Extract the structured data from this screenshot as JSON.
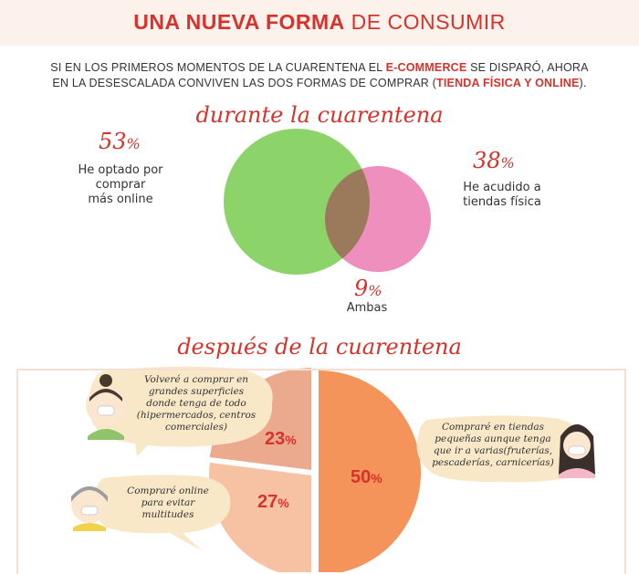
{
  "header": {
    "title_bold": "UNA NUEVA FORMA",
    "title_rest": "DE CONSUMIR"
  },
  "intro": {
    "line1_a": "SI EN LOS PRIMEROS MOMENTOS DE LA CUARENTENA EL ",
    "line1_hl": "E-COMMERCE",
    "line1_b": " SE DISPARÓ, AHORA",
    "line2_a": "EN LA DESESCALADA CONVIVEN LAS DOS FORMAS DE COMPRAR (",
    "line2_hl": "TIENDA FÍSICA Y ONLINE",
    "line2_b": ")."
  },
  "colors": {
    "accent": "#d7322b",
    "online_circle": "#8cd36a",
    "store_circle": "#ee8fbd",
    "overlap": "#9a7a5a",
    "slice_large": "#f4935a",
    "slice_23": "#eba98e",
    "slice_27": "#f7c2a3",
    "bubble": "#f8e8c8"
  },
  "sections": {
    "during": "durante la cuarentena",
    "after": "después de la cuarentena"
  },
  "chart_data": [
    {
      "type": "venn",
      "title": "durante la cuarentena",
      "sets": [
        {
          "label": "He optado por comprar más online",
          "value": 53,
          "unit": "%"
        },
        {
          "label": "He acudido a tiendas física",
          "value": 38,
          "unit": "%"
        },
        {
          "label": "Ambas",
          "value": 9,
          "unit": "%"
        }
      ]
    },
    {
      "type": "pie",
      "title": "después de la cuarentena",
      "slices": [
        {
          "label": "Volveré a comprar en grandes superficies donde tenga de todo (hipermercados, centros comerciales)",
          "value": 23,
          "unit": "%"
        },
        {
          "label": "Compraré online para evitar multitudes",
          "value": 27,
          "unit": "%"
        },
        {
          "label": "Compraré en tiendas pequeñas aunque tenga que ir a varias(fruterías, pescaderías, carnicerías)",
          "value": 50,
          "unit": "%"
        }
      ]
    }
  ],
  "venn_labels": {
    "online_pct": "53",
    "online_text_1": "He optado por",
    "online_text_2": "comprar",
    "online_text_3": "más online",
    "store_pct": "38",
    "store_text_1": "He acudido a",
    "store_text_2": "tiendas física",
    "both_pct": "9",
    "both_text": "Ambas",
    "pct_sign": "%"
  },
  "bubbles": {
    "b1": [
      "Volveré a comprar en",
      "grandes superficies",
      "donde tenga de todo",
      "(hipermercados, centros",
      "comerciales)"
    ],
    "b2": [
      "Compraré online",
      "para evitar",
      "multitudes"
    ],
    "b3": [
      "Compraré en tiendas",
      "pequeñas aunque tenga",
      "que ir a varias(fruterías,",
      "pescaderías, carnicerías)"
    ]
  },
  "pie_labels": {
    "p23": "23",
    "p27": "27",
    "p50": "50",
    "pct_sign": "%"
  }
}
